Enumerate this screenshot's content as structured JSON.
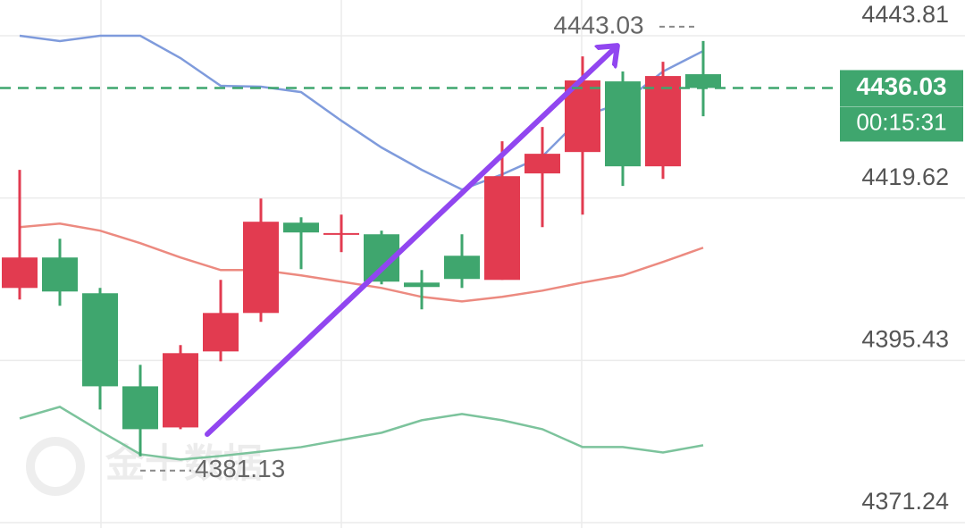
{
  "chart_data": {
    "type": "candlestick",
    "open": [
      4406.22,
      4410.76,
      4405.43,
      4391.56,
      4385.43,
      4396.76,
      4402.49,
      4415.95,
      4414.3,
      4414.22,
      4407.02,
      4411.02,
      4407.42,
      4423.29,
      4426.48,
      4437.01,
      4424.35,
      4438.08
    ],
    "high": [
      4423.82,
      4413.56,
      4406.22,
      4394.76,
      4397.7,
      4407.42,
      4419.55,
      4416.75,
      4417.15,
      4414.76,
      4408.89,
      4414.22,
      4428.08,
      4430.22,
      4440.74,
      4438.48,
      4439.94,
      4443.03
    ],
    "low": [
      4404.49,
      4403.56,
      4388.1,
      4381.13,
      4385.17,
      4395.3,
      4401.16,
      4409.02,
      4411.56,
      4406.76,
      4403.03,
      4406.22,
      4407.42,
      4415.29,
      4417.15,
      4421.42,
      4422.48,
      4431.81
    ],
    "close": [
      4410.76,
      4405.69,
      4391.56,
      4385.17,
      4396.5,
      4402.49,
      4416.09,
      4414.49,
      4414.4,
      4407.16,
      4406.36,
      4407.56,
      4422.88,
      4426.22,
      4437.15,
      4424.35,
      4437.81,
      4436.03
    ],
    "up_color": "#e23b50",
    "down_color": "#3fa66e",
    "overlays": [
      {
        "color": "#7f9bdc",
        "values": [
          4443.81,
          4443.01,
          4443.81,
          4443.81,
          4440.48,
          4436.35,
          4436.22,
          4435.41,
          4431.15,
          4427.15,
          4423.82,
          4420.89,
          4423.15,
          4425.82,
          4431.81,
          4433.81,
          4438.48,
          4441.54
        ]
      },
      {
        "color": "#ec8a80",
        "values": [
          4415.29,
          4415.82,
          4414.76,
          4412.89,
          4410.76,
          4408.89,
          4408.89,
          4408.09,
          4407.16,
          4406.22,
          4404.89,
          4404.22,
          4404.89,
          4405.82,
          4407.02,
          4408.09,
          4410.09,
          4412.22
        ]
      },
      {
        "color": "#7cc39c",
        "values": [
          4386.77,
          4388.5,
          4384.9,
          4381.43,
          4380.64,
          4381.17,
          4381.83,
          4382.5,
          4383.57,
          4384.64,
          4386.5,
          4387.43,
          4386.5,
          4385.17,
          4382.5,
          4382.5,
          4381.7,
          4382.77
        ]
      }
    ],
    "ylim": [
      4370.44,
      4449.14
    ],
    "yticks": [
      4443.81,
      4419.62,
      4395.43,
      4371.24
    ],
    "grid": true,
    "countdown": "00:15:31",
    "watermark": "金十数据"
  }
}
